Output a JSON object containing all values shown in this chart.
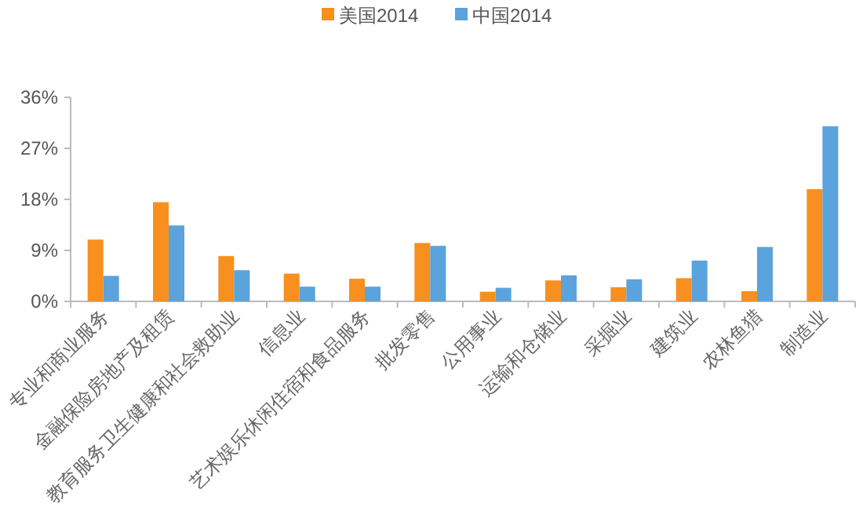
{
  "chart_data": {
    "type": "bar",
    "categories": [
      "专业和商业服务",
      "金融保险房地产及租赁",
      "教育服务卫生健康和社会救助业",
      "信息业",
      "艺术娱乐休闲住宿和食品服务",
      "批发零售",
      "公用事业",
      "运输和仓储业",
      "采掘业",
      "建筑业",
      "农林鱼猎",
      "制造业"
    ],
    "series": [
      {
        "name": "美国2014",
        "color": "#f7901e",
        "values": [
          10.9,
          17.5,
          8.0,
          4.9,
          4.0,
          10.3,
          1.7,
          3.7,
          2.5,
          4.1,
          1.8,
          19.8
        ]
      },
      {
        "name": "中国2014",
        "color": "#5ba3dc",
        "values": [
          4.5,
          13.4,
          5.5,
          2.6,
          2.6,
          9.8,
          2.4,
          4.6,
          3.9,
          7.2,
          9.6,
          30.9
        ]
      }
    ],
    "ylim": [
      0,
      36
    ],
    "yticks": [
      {
        "value": 0,
        "label": "0%"
      },
      {
        "value": 9,
        "label": "9%"
      },
      {
        "value": 18,
        "label": "18%"
      },
      {
        "value": 27,
        "label": "27%"
      },
      {
        "value": 36,
        "label": "36%"
      }
    ],
    "grid": false,
    "legend": "top"
  }
}
